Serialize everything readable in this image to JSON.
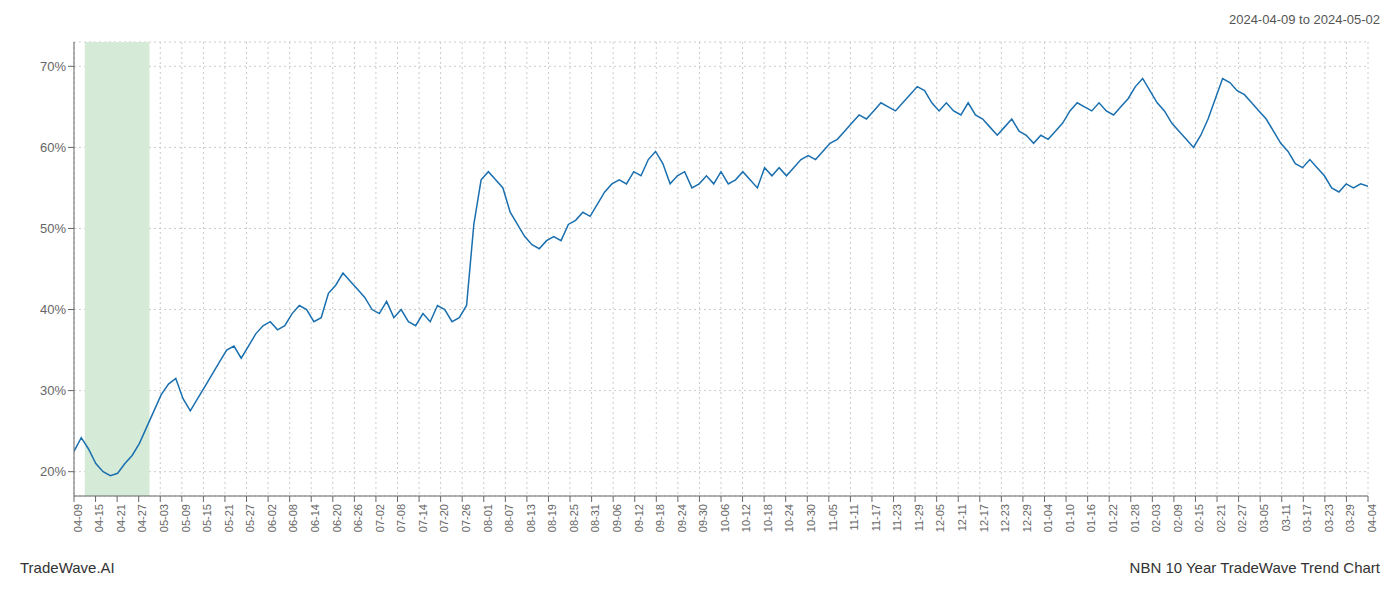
{
  "chart_data": {
    "type": "line",
    "title": "NBN 10 Year TradeWave Trend Chart",
    "subtitle": "2024-04-09 to 2024-05-02",
    "annotations": [
      "TradeWave.AI"
    ],
    "color": "#1a6faf",
    "grid": true,
    "xlim": [
      0,
      60
    ],
    "ylim": [
      17,
      73
    ],
    "yticks": [
      {
        "value": 20,
        "label": "20%"
      },
      {
        "value": 30,
        "label": "30%"
      },
      {
        "value": 40,
        "label": "40%"
      },
      {
        "value": 50,
        "label": "50%"
      },
      {
        "value": 60,
        "label": "60%"
      },
      {
        "value": 70,
        "label": "70%"
      }
    ],
    "xticks": [
      {
        "value": 0,
        "label": "04-09"
      },
      {
        "value": 1,
        "label": "04-15"
      },
      {
        "value": 2,
        "label": "04-21"
      },
      {
        "value": 3,
        "label": "04-27"
      },
      {
        "value": 4,
        "label": "05-03"
      },
      {
        "value": 5,
        "label": "05-09"
      },
      {
        "value": 6,
        "label": "05-15"
      },
      {
        "value": 7,
        "label": "05-21"
      },
      {
        "value": 8,
        "label": "05-27"
      },
      {
        "value": 9,
        "label": "06-02"
      },
      {
        "value": 10,
        "label": "06-08"
      },
      {
        "value": 11,
        "label": "06-14"
      },
      {
        "value": 12,
        "label": "06-20"
      },
      {
        "value": 13,
        "label": "06-26"
      },
      {
        "value": 14,
        "label": "07-02"
      },
      {
        "value": 15,
        "label": "07-08"
      },
      {
        "value": 16,
        "label": "07-14"
      },
      {
        "value": 17,
        "label": "07-20"
      },
      {
        "value": 18,
        "label": "07-26"
      },
      {
        "value": 19,
        "label": "08-01"
      },
      {
        "value": 20,
        "label": "08-07"
      },
      {
        "value": 21,
        "label": "08-13"
      },
      {
        "value": 22,
        "label": "08-19"
      },
      {
        "value": 23,
        "label": "08-25"
      },
      {
        "value": 24,
        "label": "08-31"
      },
      {
        "value": 25,
        "label": "09-06"
      },
      {
        "value": 26,
        "label": "09-12"
      },
      {
        "value": 27,
        "label": "09-18"
      },
      {
        "value": 28,
        "label": "09-24"
      },
      {
        "value": 29,
        "label": "09-30"
      },
      {
        "value": 30,
        "label": "10-06"
      },
      {
        "value": 31,
        "label": "10-12"
      },
      {
        "value": 32,
        "label": "10-18"
      },
      {
        "value": 33,
        "label": "10-24"
      },
      {
        "value": 34,
        "label": "10-30"
      },
      {
        "value": 35,
        "label": "11-05"
      },
      {
        "value": 36,
        "label": "11-11"
      },
      {
        "value": 37,
        "label": "11-17"
      },
      {
        "value": 38,
        "label": "11-23"
      },
      {
        "value": 39,
        "label": "11-29"
      },
      {
        "value": 40,
        "label": "12-05"
      },
      {
        "value": 41,
        "label": "12-11"
      },
      {
        "value": 42,
        "label": "12-17"
      },
      {
        "value": 43,
        "label": "12-23"
      },
      {
        "value": 44,
        "label": "12-29"
      },
      {
        "value": 45,
        "label": "01-04"
      },
      {
        "value": 46,
        "label": "01-10"
      },
      {
        "value": 47,
        "label": "01-16"
      },
      {
        "value": 48,
        "label": "01-22"
      },
      {
        "value": 49,
        "label": "01-28"
      },
      {
        "value": 50,
        "label": "02-03"
      },
      {
        "value": 51,
        "label": "02-09"
      },
      {
        "value": 52,
        "label": "02-15"
      },
      {
        "value": 53,
        "label": "02-21"
      },
      {
        "value": 54,
        "label": "02-27"
      },
      {
        "value": 55,
        "label": "03-05"
      },
      {
        "value": 56,
        "label": "03-11"
      },
      {
        "value": 57,
        "label": "03-17"
      },
      {
        "value": 58,
        "label": "03-23"
      },
      {
        "value": 59,
        "label": "03-29"
      },
      {
        "value": 60,
        "label": "04-04"
      }
    ],
    "highlight": {
      "xlim": [
        0.5,
        3.5
      ],
      "color": "#d6ead8"
    },
    "x": [
      0,
      0.337079,
      0.674157,
      1.011236,
      1.348315,
      1.685393,
      2.022472,
      2.359551,
      2.696629,
      3.033708,
      3.370787,
      3.707865,
      4.044944,
      4.382022,
      4.719101,
      5.05618,
      5.393258,
      5.730337,
      6.067416,
      6.404494,
      6.741573,
      7.078652,
      7.41573,
      7.752809,
      8.089888,
      8.426966,
      8.764045,
      9.101124,
      9.438202,
      9.775281,
      10.11236,
      10.449438,
      10.786517,
      11.123596,
      11.460674,
      11.797753,
      12.134831,
      12.47191,
      12.808989,
      13.146067,
      13.483146,
      13.820225,
      14.157303,
      14.494382,
      14.831461,
      15.168539,
      15.505618,
      15.842697,
      16.179775,
      16.516854,
      16.853933,
      17.191011,
      17.52809,
      17.865169,
      18.202247,
      18.539326,
      18.876404,
      19.213483,
      19.550562,
      19.88764,
      20.224719,
      20.561798,
      20.898876,
      21.235955,
      21.573034,
      21.910112,
      22.247191,
      22.58427,
      22.921348,
      23.258427,
      23.595506,
      23.932584,
      24.269663,
      24.606742,
      24.94382,
      25.280899,
      25.617978,
      25.955056,
      26.292135,
      26.629213,
      26.966292,
      27.303371,
      27.640449,
      27.977528,
      28.314607,
      28.651685,
      28.988764,
      29.325843,
      29.662921,
      30,
      30.337079,
      30.674157,
      31.011236,
      31.348315,
      31.685393,
      32.022472,
      32.359551,
      32.696629,
      33.033708,
      33.370787,
      33.707865,
      34.044944,
      34.382022,
      34.719101,
      35.05618,
      35.393258,
      35.730337,
      36.067416,
      36.404494,
      36.741573,
      37.078652,
      37.41573,
      37.752809,
      38.089888,
      38.426966,
      38.764045,
      39.101124,
      39.438202,
      39.775281,
      40.11236,
      40.449438,
      40.786517,
      41.123596,
      41.460674,
      41.797753,
      42.134831,
      42.47191,
      42.808989,
      43.146067,
      43.483146,
      43.820225,
      44.157303,
      44.494382,
      44.831461,
      45.168539,
      45.505618,
      45.842697,
      46.179775,
      46.516854,
      46.853933,
      47.191011,
      47.52809,
      47.865169,
      48.202247,
      48.539326,
      48.876404,
      49.213483,
      49.550562,
      49.88764,
      50.224719,
      50.561798,
      50.898876,
      51.235955,
      51.573034,
      51.910112,
      52.247191,
      52.58427,
      52.921348,
      53.258427,
      53.595506,
      53.932584,
      54.269663,
      54.606742,
      54.94382,
      55.280899,
      55.617978,
      55.955056,
      56.292135,
      56.629213,
      56.966292,
      57.303371,
      57.640449,
      57.977528,
      58.314607,
      58.651685,
      58.988764,
      59.325843,
      59.662921,
      60
    ],
    "values": [
      22.5,
      24.2,
      22.8,
      21.0,
      20.0,
      19.5,
      19.8,
      21.0,
      22.0,
      23.5,
      25.5,
      27.5,
      29.5,
      30.8,
      31.5,
      29.0,
      27.5,
      29.0,
      30.5,
      32.0,
      33.5,
      35.0,
      35.5,
      34.0,
      35.5,
      37.0,
      38.0,
      38.5,
      37.5,
      38.0,
      39.5,
      40.5,
      40.0,
      38.5,
      39.0,
      42.0,
      43.0,
      44.5,
      43.5,
      42.5,
      41.5,
      40.0,
      39.5,
      41.0,
      39.0,
      40.0,
      38.5,
      38.0,
      39.5,
      38.5,
      40.5,
      40.0,
      38.5,
      39.0,
      40.5,
      50.5,
      56.0,
      57.0,
      56.0,
      55.0,
      52.0,
      50.5,
      49.0,
      48.0,
      47.5,
      48.5,
      49.0,
      48.5,
      50.5,
      51.0,
      52.0,
      51.5,
      53.0,
      54.5,
      55.5,
      56.0,
      55.5,
      57.0,
      56.5,
      58.5,
      59.5,
      58.0,
      55.5,
      56.5,
      57.0,
      55.0,
      55.5,
      56.5,
      55.5,
      57.0,
      55.5,
      56.0,
      57.0,
      56.0,
      55.0,
      57.5,
      56.5,
      57.5,
      56.5,
      57.5,
      58.5,
      59.0,
      58.5,
      59.5,
      60.5,
      61.0,
      62.0,
      63.0,
      64.0,
      63.5,
      64.5,
      65.5,
      65.0,
      64.5,
      65.5,
      66.5,
      67.5,
      67.0,
      65.5,
      64.5,
      65.5,
      64.5,
      64.0,
      65.5,
      64.0,
      63.5,
      62.5,
      61.5,
      62.5,
      63.5,
      62.0,
      61.5,
      60.5,
      61.5,
      61.0,
      62.0,
      63.0,
      64.5,
      65.5,
      65.0,
      64.5,
      65.5,
      64.5,
      64.0,
      65.0,
      66.0,
      67.5,
      68.5,
      67.0,
      65.5,
      64.5,
      63.0,
      62.0,
      61.0,
      60.0,
      61.5,
      63.5,
      66.0,
      68.5,
      68.0,
      67.0,
      66.5,
      65.5,
      64.5,
      63.5,
      62.0,
      60.5,
      59.5,
      58.0,
      57.5,
      58.5,
      57.5,
      56.5,
      55.0,
      54.5,
      55.5,
      55.0,
      55.5,
      55.2
    ]
  }
}
